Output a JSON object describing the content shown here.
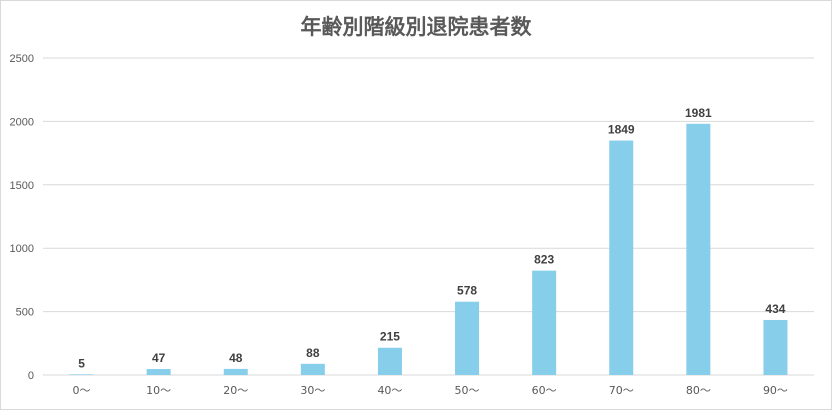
{
  "chart_data": {
    "type": "bar",
    "title": "年齢別階級別退院患者数",
    "categories": [
      "0〜",
      "10〜",
      "20〜",
      "30〜",
      "40〜",
      "50〜",
      "60〜",
      "70〜",
      "80〜",
      "90〜"
    ],
    "values": [
      5,
      47,
      48,
      88,
      215,
      578,
      823,
      1849,
      1981,
      434
    ],
    "ylim": [
      0,
      2500
    ],
    "yticks": [
      0,
      500,
      1000,
      1500,
      2000,
      2500
    ],
    "grid": true,
    "data_labels": true,
    "bar_color": "#87ceeb",
    "legend": "none"
  }
}
